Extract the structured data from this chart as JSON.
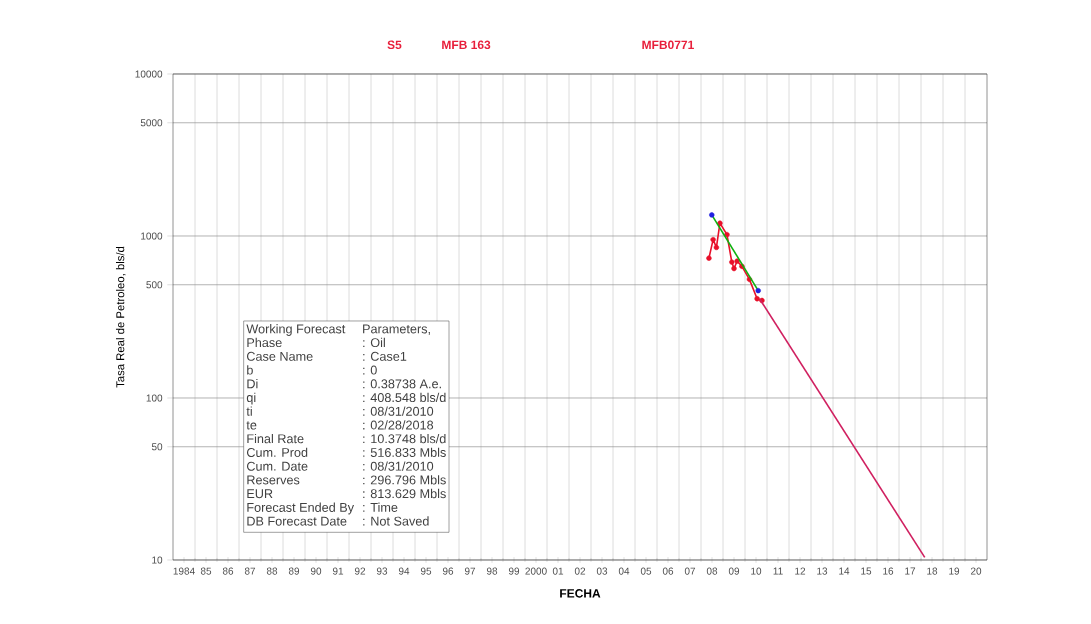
{
  "chart_data": {
    "type": "line",
    "title": "S5",
    "subtitle": "MFB 163",
    "xlabel": "FECHA",
    "ylabel": "Tasa Real de Petroleo, bls/d",
    "log": "y",
    "grid": true,
    "xlim": [
      1983.5,
      2020.5
    ],
    "ylim": [
      10,
      10000
    ],
    "xticks": [
      {
        "value": 1984,
        "label": "1984"
      },
      {
        "value": 1985,
        "label": "85"
      },
      {
        "value": 1986,
        "label": "86"
      },
      {
        "value": 1987,
        "label": "87"
      },
      {
        "value": 1988,
        "label": "88"
      },
      {
        "value": 1989,
        "label": "89"
      },
      {
        "value": 1990,
        "label": "90"
      },
      {
        "value": 1991,
        "label": "91"
      },
      {
        "value": 1992,
        "label": "92"
      },
      {
        "value": 1993,
        "label": "93"
      },
      {
        "value": 1994,
        "label": "94"
      },
      {
        "value": 1995,
        "label": "95"
      },
      {
        "value": 1996,
        "label": "96"
      },
      {
        "value": 1997,
        "label": "97"
      },
      {
        "value": 1998,
        "label": "98"
      },
      {
        "value": 1999,
        "label": "99"
      },
      {
        "value": 2000,
        "label": "2000"
      },
      {
        "value": 2001,
        "label": "01"
      },
      {
        "value": 2002,
        "label": "02"
      },
      {
        "value": 2003,
        "label": "03"
      },
      {
        "value": 2004,
        "label": "04"
      },
      {
        "value": 2005,
        "label": "05"
      },
      {
        "value": 2006,
        "label": "06"
      },
      {
        "value": 2007,
        "label": "07"
      },
      {
        "value": 2008,
        "label": "08"
      },
      {
        "value": 2009,
        "label": "09"
      },
      {
        "value": 2010,
        "label": "10"
      },
      {
        "value": 2011,
        "label": "11"
      },
      {
        "value": 2012,
        "label": "12"
      },
      {
        "value": 2013,
        "label": "13"
      },
      {
        "value": 2014,
        "label": "14"
      },
      {
        "value": 2015,
        "label": "15"
      },
      {
        "value": 2016,
        "label": "16"
      },
      {
        "value": 2017,
        "label": "17"
      },
      {
        "value": 2018,
        "label": "18"
      },
      {
        "value": 2019,
        "label": "19"
      },
      {
        "value": 2020,
        "label": "20"
      }
    ],
    "yticks": [
      10,
      50,
      100,
      500,
      1000,
      5000,
      10000
    ],
    "series": [
      {
        "color": "#e8102a",
        "marker": "circle",
        "x": [
          2007.86,
          2008.05,
          2008.2,
          2008.36,
          2008.68,
          2008.9,
          2009.0,
          2009.14,
          2009.36,
          2009.7,
          2010.05,
          2010.27
        ],
        "values": [
          730,
          950,
          850,
          1200,
          1020,
          690,
          630,
          700,
          650,
          540,
          410,
          400
        ]
      },
      {
        "color": "#10b010",
        "marker": "none",
        "x": [
          2007.99,
          2010.1
        ],
        "values": [
          1350,
          460
        ]
      },
      {
        "type": "scatter",
        "color": "#2020e0",
        "marker": "circle",
        "x": [
          2007.99,
          2010.1
        ],
        "values": [
          1350,
          460
        ]
      },
      {
        "color": "#d02060",
        "marker": "none",
        "x": [
          2010.17,
          2017.67
        ],
        "values": [
          408.5,
          10.37
        ]
      }
    ],
    "annotations": [
      "MFB0771",
      "Working Forecast",
      "Parameters,",
      "Phase",
      ": Oil",
      "Case Name",
      ": Case1",
      "b",
      ": 0",
      "Di",
      ": 0.38738 A.e.",
      "qi",
      ": 408.548 bls/d",
      "ti",
      ": 08/31/2010",
      "te",
      ": 02/28/2018",
      "Final Rate",
      ": 10.3748 bls/d",
      "Cum. Prod",
      ": 516.833 Mbls",
      "Cum. Date",
      ": 08/31/2010",
      "Reserves",
      ": 296.796 Mbls",
      "EUR",
      ": 813.629 Mbls",
      "Forecast Ended By",
      ": Time",
      "DB Forecast Date",
      ": Not Saved"
    ]
  }
}
